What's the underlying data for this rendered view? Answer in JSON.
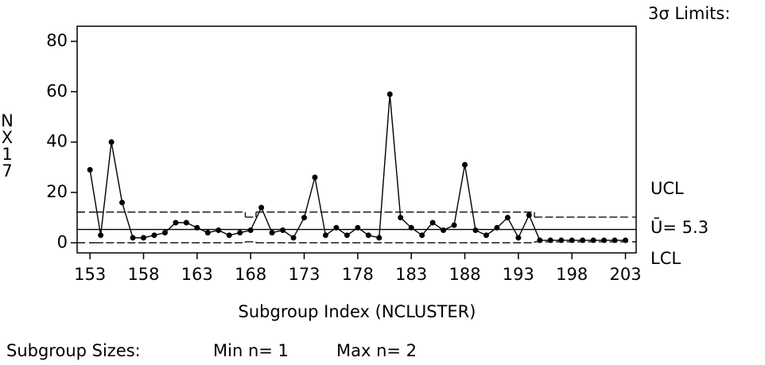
{
  "chart_data": {
    "type": "line",
    "limits_title": "3σ Limits:",
    "x_label": "Subgroup Index (NCLUSTER)",
    "y_label": "NX17",
    "ucl_label": "UCL",
    "lcl_label": "LCL",
    "center_label": "Ū=",
    "center": 5.3,
    "footer": [
      "Subgroup Sizes:",
      "Min n= 1",
      "Max n= 2"
    ],
    "x": [
      153,
      154,
      155,
      156,
      157,
      158,
      159,
      160,
      161,
      162,
      163,
      164,
      165,
      166,
      167,
      168,
      169,
      170,
      171,
      172,
      173,
      174,
      175,
      176,
      177,
      178,
      179,
      180,
      181,
      182,
      183,
      184,
      185,
      186,
      187,
      188,
      189,
      190,
      191,
      192,
      193,
      194,
      195,
      196,
      197,
      198,
      199,
      200,
      201,
      202,
      203
    ],
    "series": [
      {
        "color": "#000000",
        "values": [
          29,
          3,
          40,
          16,
          2,
          2,
          3,
          4,
          8,
          8,
          6,
          4,
          5,
          3,
          4,
          5,
          14,
          4,
          5,
          2,
          10,
          26,
          3,
          6,
          3,
          6,
          3,
          2,
          59,
          10,
          6,
          3,
          8,
          5,
          7,
          31,
          5,
          3,
          6,
          10,
          2,
          11,
          1,
          1,
          1,
          1,
          1,
          1,
          1,
          1,
          1
        ]
      }
    ],
    "ucl": [
      12.2,
      12.2,
      12.2,
      12.2,
      12.2,
      12.2,
      12.2,
      12.2,
      12.2,
      12.2,
      12.2,
      12.2,
      12.2,
      12.2,
      12.2,
      10.2,
      12.2,
      12.2,
      12.2,
      12.2,
      12.2,
      12.2,
      12.2,
      12.2,
      12.2,
      12.2,
      12.2,
      12.2,
      12.2,
      12.2,
      12.2,
      12.2,
      12.2,
      12.2,
      12.2,
      12.2,
      12.2,
      12.2,
      12.2,
      12.2,
      12.2,
      12.2,
      10.2,
      10.2,
      10.2,
      10.2,
      10.2,
      10.2,
      10.2,
      10.2,
      10.2
    ],
    "lcl": [
      0,
      0,
      0,
      0,
      0,
      0,
      0,
      0,
      0,
      0,
      0,
      0,
      0,
      0,
      0,
      0.4,
      0,
      0,
      0,
      0,
      0,
      0,
      0,
      0,
      0,
      0,
      0,
      0,
      0,
      0,
      0,
      0,
      0,
      0,
      0,
      0,
      0,
      0,
      0,
      0,
      0,
      0,
      0.4,
      0.4,
      0.4,
      0.4,
      0.4,
      0.4,
      0.4,
      0.4,
      0.4
    ],
    "xlim": [
      151.8,
      204
    ],
    "ylim": [
      -4,
      86
    ],
    "xticks": [
      153,
      158,
      163,
      168,
      173,
      178,
      183,
      188,
      193,
      198,
      203
    ],
    "yticks": [
      0,
      20,
      40,
      60,
      80
    ]
  }
}
